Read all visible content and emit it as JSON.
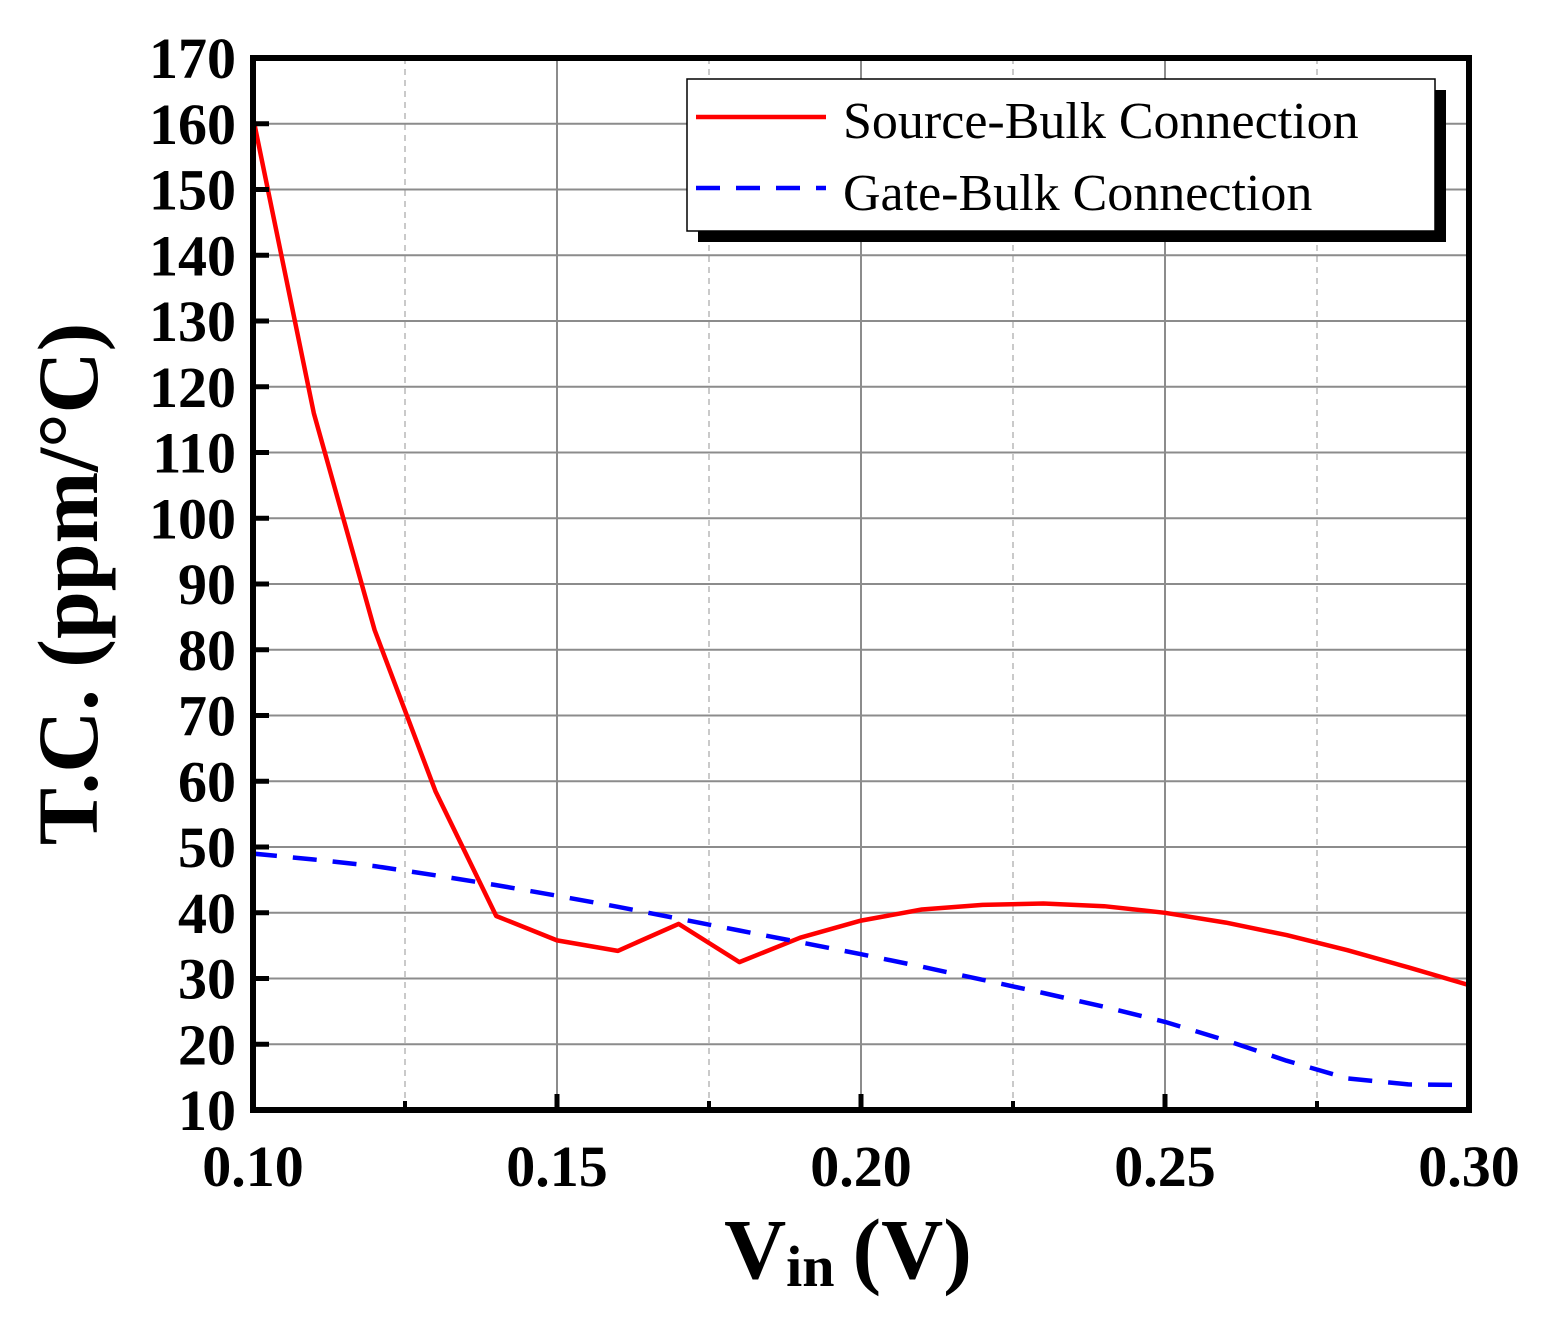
{
  "chart_data": {
    "type": "line",
    "title": "",
    "xlabel": "V",
    "xlabel_subscript": "in",
    "xlabel_unit": "(V)",
    "ylabel": "T.C. (ppm/°C)",
    "xlim": [
      0.1,
      0.3
    ],
    "ylim": [
      10,
      170
    ],
    "xticks": [
      0.1,
      0.15,
      0.2,
      0.25,
      0.3
    ],
    "xtick_labels": [
      "0.10",
      "0.15",
      "0.20",
      "0.25",
      "0.30"
    ],
    "yticks": [
      10,
      20,
      30,
      40,
      50,
      60,
      70,
      80,
      90,
      100,
      110,
      120,
      130,
      140,
      150,
      160,
      170
    ],
    "ytick_labels": [
      "10",
      "20",
      "30",
      "40",
      "50",
      "60",
      "70",
      "80",
      "90",
      "100",
      "110",
      "120",
      "130",
      "140",
      "150",
      "160",
      "170"
    ],
    "minor_xticks": [
      0.125,
      0.175,
      0.225,
      0.275
    ],
    "grid": true,
    "legend_position": "top-right",
    "series": [
      {
        "name": "Source-Bulk Connection",
        "color": "#ff0000",
        "style": "solid",
        "x": [
          0.1,
          0.11,
          0.12,
          0.13,
          0.14,
          0.15,
          0.16,
          0.17,
          0.18,
          0.19,
          0.2,
          0.21,
          0.22,
          0.23,
          0.24,
          0.25,
          0.26,
          0.27,
          0.28,
          0.29,
          0.3
        ],
        "values": [
          161,
          116,
          83,
          58.5,
          39.5,
          35.8,
          34.2,
          38.3,
          32.5,
          36.2,
          38.8,
          40.5,
          41.2,
          41.4,
          41.0,
          40.0,
          38.5,
          36.6,
          34.3,
          31.7,
          29.0
        ]
      },
      {
        "name": "Gate-Bulk Connection",
        "color": "#0000ff",
        "style": "dashed",
        "x": [
          0.1,
          0.11,
          0.12,
          0.13,
          0.14,
          0.15,
          0.16,
          0.17,
          0.18,
          0.19,
          0.2,
          0.21,
          0.22,
          0.23,
          0.24,
          0.25,
          0.26,
          0.27,
          0.28,
          0.29,
          0.3
        ],
        "values": [
          49.0,
          48.1,
          47.1,
          45.7,
          44.2,
          42.6,
          40.9,
          39.1,
          37.3,
          35.5,
          33.7,
          31.8,
          29.8,
          27.8,
          25.7,
          23.4,
          20.6,
          17.5,
          14.8,
          13.9,
          13.8
        ]
      }
    ]
  }
}
